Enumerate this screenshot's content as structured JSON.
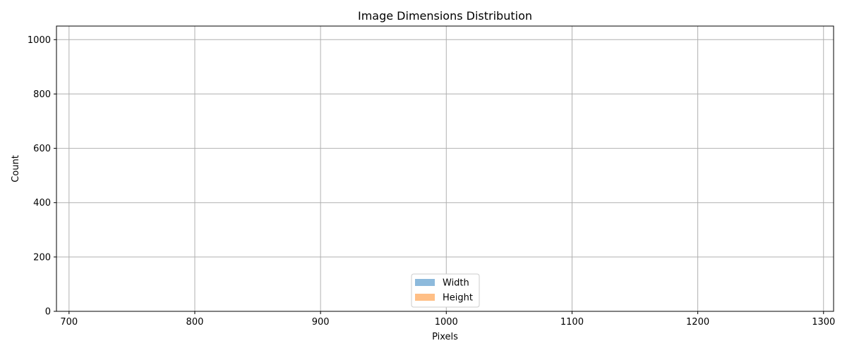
{
  "chart_data": {
    "type": "bar",
    "title": "Image Dimensions Distribution",
    "xlabel": "Pixels",
    "ylabel": "Count",
    "xlim": [
      690,
      1308
    ],
    "ylim": [
      0,
      1050
    ],
    "x_ticks": [
      700,
      800,
      900,
      1000,
      1100,
      1200,
      1300
    ],
    "y_ticks": [
      0,
      200,
      400,
      600,
      800,
      1000
    ],
    "grid": true,
    "legend": {
      "placement": "lower-center",
      "entries": [
        {
          "label": "Width",
          "color": "#8dbadc"
        },
        {
          "label": "Height",
          "color": "#ffbf86"
        }
      ]
    },
    "series": [
      {
        "name": "Width",
        "values": []
      },
      {
        "name": "Height",
        "values": []
      }
    ]
  }
}
